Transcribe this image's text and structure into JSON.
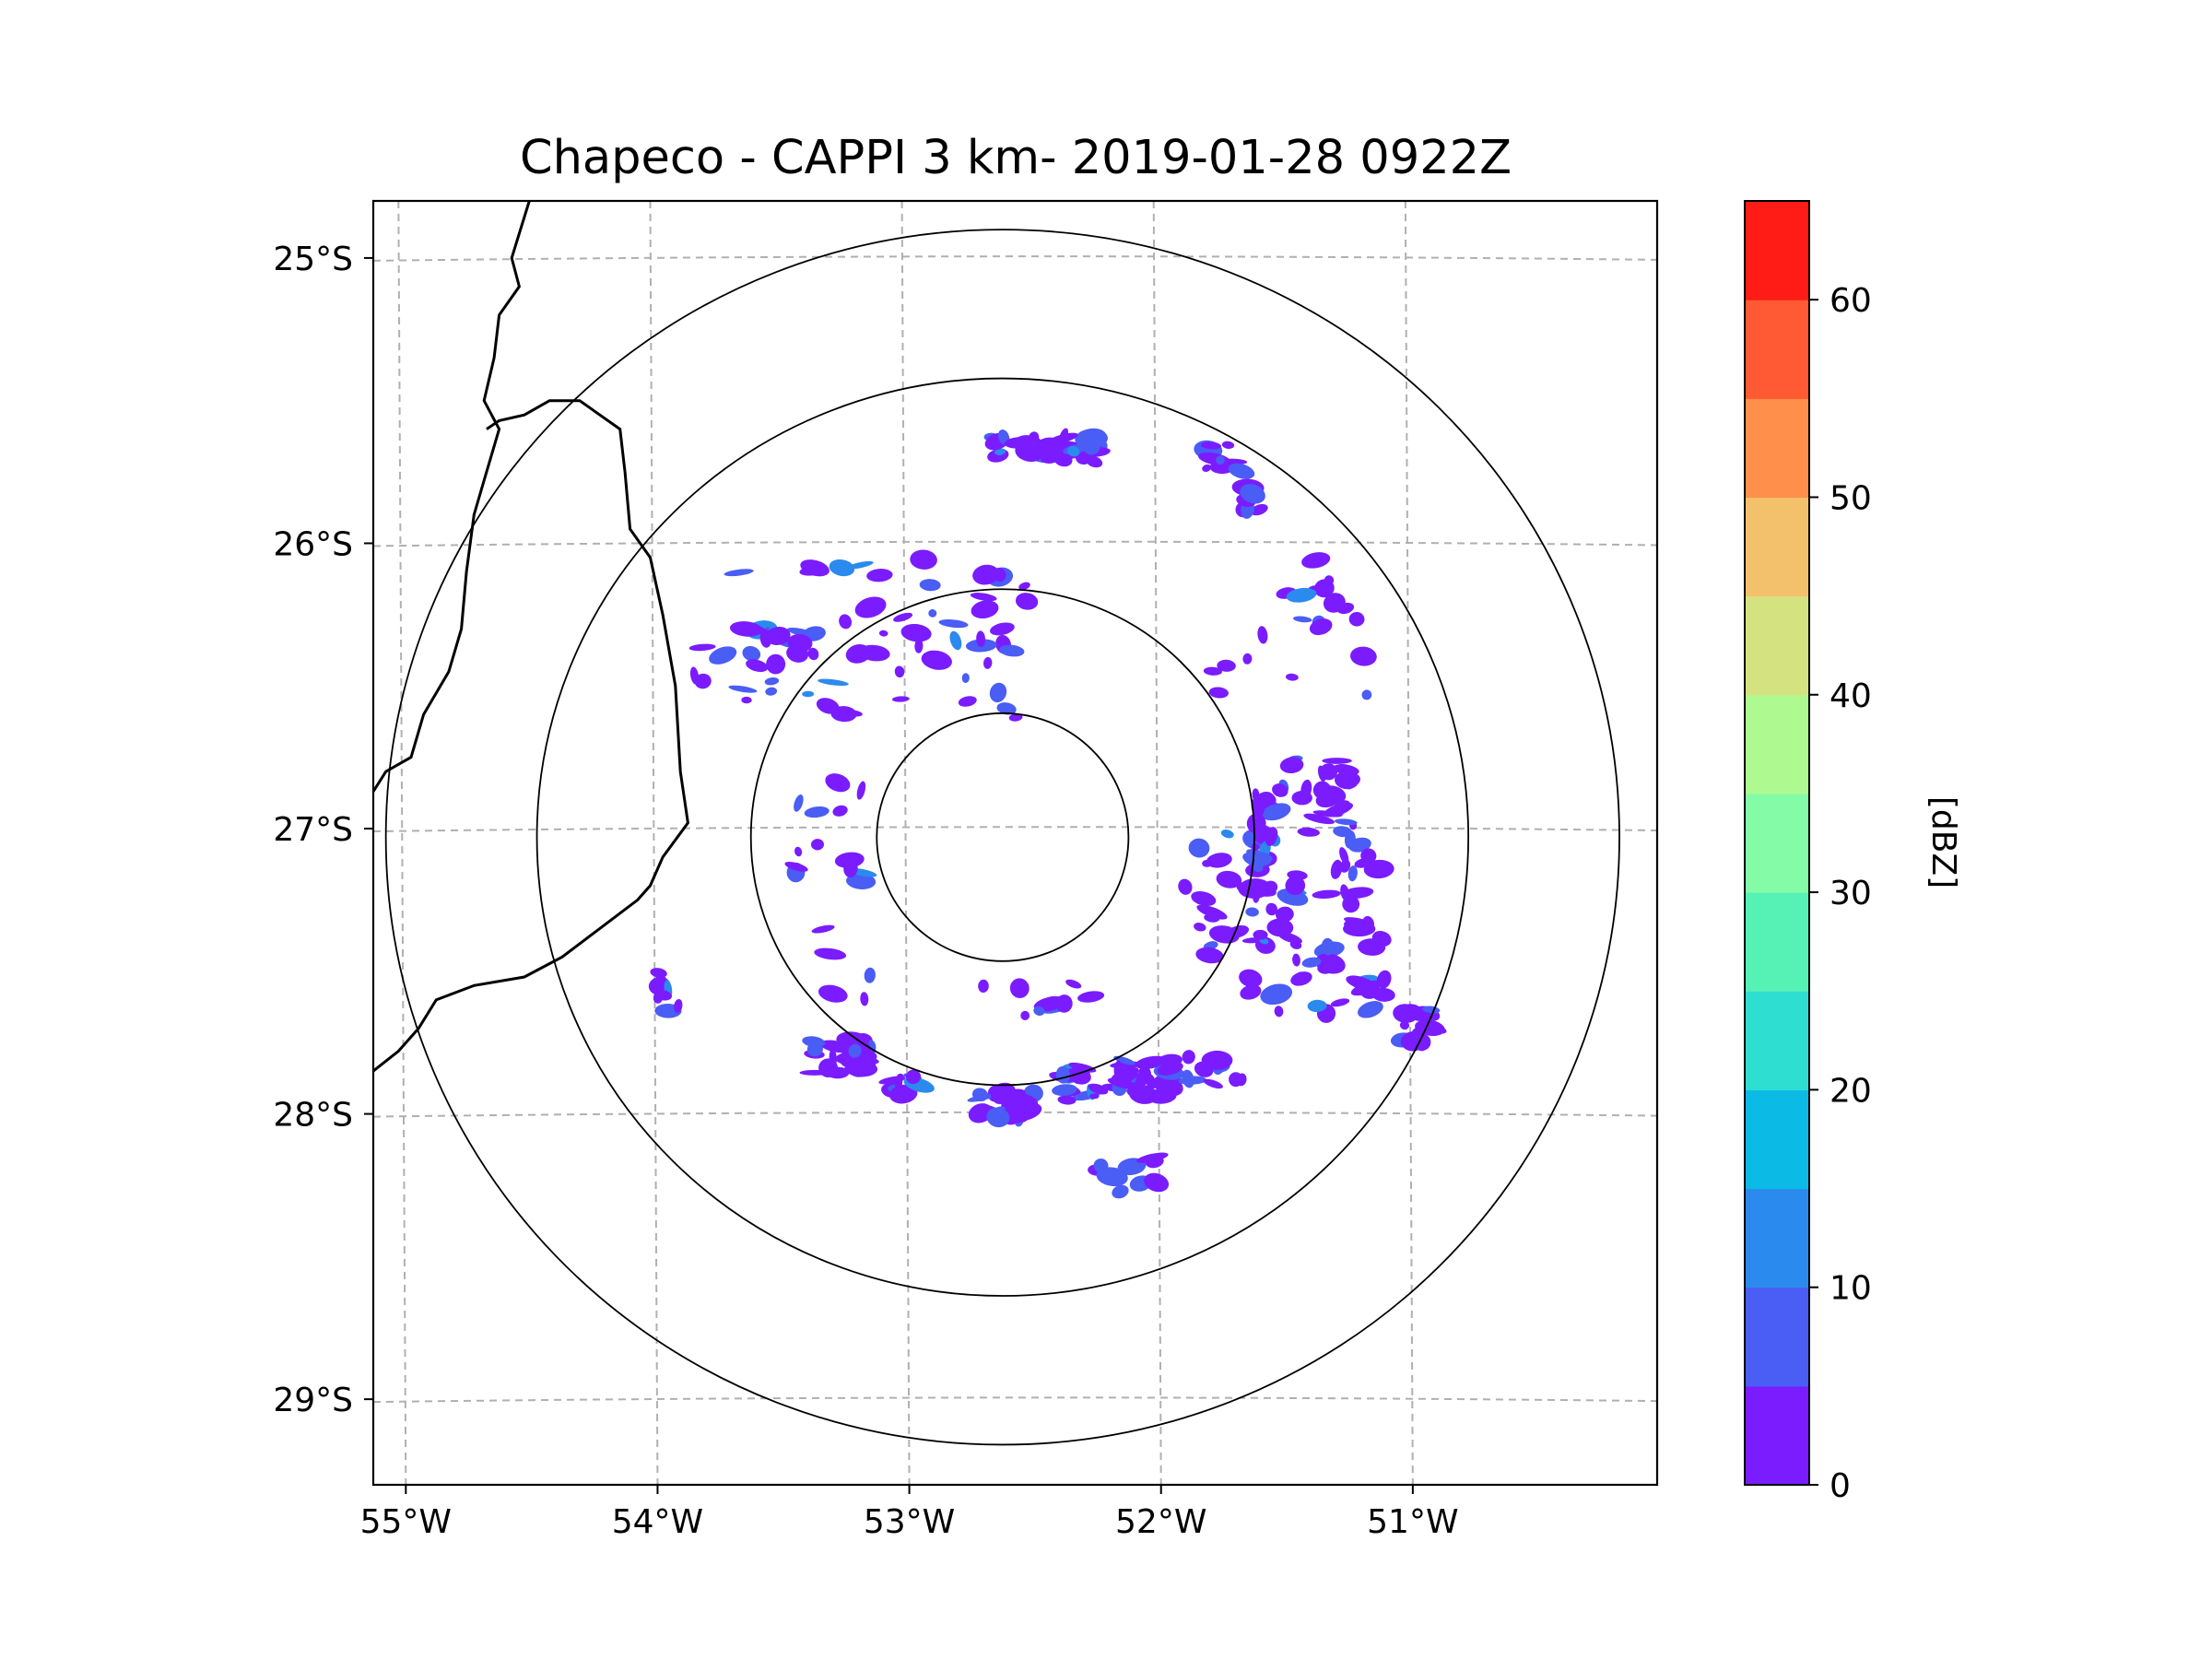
{
  "chart_data": {
    "type": "radar-map",
    "title": "Chapeco - CAPPI 3 km- 2019-01-28 0922Z",
    "lon_range": [
      -55.1,
      -50.0
    ],
    "lat_range": [
      -29.3,
      -24.8
    ],
    "radar_center": {
      "lon": -52.6,
      "lat": -27.03
    },
    "range_ring_radii_deg": [
      0.5,
      1.0,
      1.85,
      2.45
    ],
    "x_ticks": [
      {
        "value": -55,
        "label": "55°W"
      },
      {
        "value": -54,
        "label": "54°W"
      },
      {
        "value": -53,
        "label": "53°W"
      },
      {
        "value": -52,
        "label": "52°W"
      },
      {
        "value": -51,
        "label": "51°W"
      }
    ],
    "y_ticks": [
      {
        "value": -25,
        "label": "25°S"
      },
      {
        "value": -26,
        "label": "26°S"
      },
      {
        "value": -27,
        "label": "27°S"
      },
      {
        "value": -28,
        "label": "28°S"
      },
      {
        "value": -29,
        "label": "29°S"
      }
    ],
    "colorbar": {
      "label": "[dBZ]",
      "min": 0,
      "max": 65,
      "step": 5,
      "tick_values": [
        "0",
        "10",
        "20",
        "30",
        "40",
        "50",
        "60"
      ],
      "colors": [
        "#7a1cff",
        "#4a5df5",
        "#2b8aee",
        "#0bbbe6",
        "#2edfd1",
        "#55f1b5",
        "#84fba6",
        "#aefa91",
        "#d4e380",
        "#f3c16b",
        "#ff8f4b",
        "#ff5a33",
        "#ff1c16"
      ]
    },
    "echo_clusters": [
      {
        "lon": -52.42,
        "lat": -25.67,
        "w": 0.45,
        "h": 0.1,
        "n": 30
      },
      {
        "lon": -51.72,
        "lat": -25.7,
        "w": 0.15,
        "h": 0.1,
        "n": 10
      },
      {
        "lon": -51.62,
        "lat": -25.84,
        "w": 0.08,
        "h": 0.1,
        "n": 6
      },
      {
        "lon": -53.05,
        "lat": -26.22,
        "w": 1.2,
        "h": 0.35,
        "n": 35
      },
      {
        "lon": -51.5,
        "lat": -26.3,
        "w": 0.7,
        "h": 0.5,
        "n": 20
      },
      {
        "lon": -53.6,
        "lat": -26.4,
        "w": 0.5,
        "h": 0.3,
        "n": 20
      },
      {
        "lon": -52.9,
        "lat": -26.5,
        "w": 0.8,
        "h": 0.25,
        "n": 15
      },
      {
        "lon": -51.4,
        "lat": -26.9,
        "w": 0.4,
        "h": 0.3,
        "n": 40
      },
      {
        "lon": -51.35,
        "lat": -27.35,
        "w": 0.55,
        "h": 0.6,
        "n": 60
      },
      {
        "lon": -51.7,
        "lat": -27.2,
        "w": 0.35,
        "h": 0.5,
        "n": 25
      },
      {
        "lon": -50.95,
        "lat": -27.7,
        "w": 0.15,
        "h": 0.15,
        "n": 15
      },
      {
        "lon": -53.25,
        "lat": -27.8,
        "w": 0.25,
        "h": 0.12,
        "n": 25
      },
      {
        "lon": -53.0,
        "lat": -27.9,
        "w": 0.2,
        "h": 0.1,
        "n": 10
      },
      {
        "lon": -52.6,
        "lat": -27.97,
        "w": 0.25,
        "h": 0.1,
        "n": 25
      },
      {
        "lon": -52.15,
        "lat": -27.88,
        "w": 0.45,
        "h": 0.15,
        "n": 40
      },
      {
        "lon": -51.8,
        "lat": -27.85,
        "w": 0.3,
        "h": 0.1,
        "n": 15
      },
      {
        "lon": -53.3,
        "lat": -27.2,
        "w": 0.35,
        "h": 0.8,
        "n": 18
      },
      {
        "lon": -52.4,
        "lat": -27.6,
        "w": 0.6,
        "h": 0.12,
        "n": 12
      },
      {
        "lon": -53.9,
        "lat": -27.55,
        "w": 0.15,
        "h": 0.2,
        "n": 8
      },
      {
        "lon": -52.1,
        "lat": -28.2,
        "w": 0.4,
        "h": 0.15,
        "n": 10
      }
    ]
  }
}
